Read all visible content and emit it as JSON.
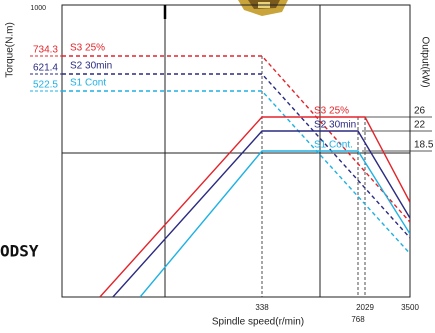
{
  "chart_data": {
    "type": "line",
    "x_label": "Spindle speed(r/min)",
    "y_label": "Torque(N.m)",
    "y2_label": "Output(kW)",
    "xlim": [
      0,
      3500
    ],
    "xticks": [
      338,
      768,
      2029,
      3500
    ],
    "ylim": [
      0,
      1000
    ],
    "yticks": [
      522.5,
      621.4,
      734.3,
      1000
    ],
    "y2lim": [
      0,
      58
    ],
    "y2ticks": [
      18.5,
      22,
      26
    ],
    "series": [
      {
        "name": "S3 25%",
        "color": "#e3242b",
        "linestyle": "dashed",
        "x": [
          0,
          338,
          3500
        ],
        "values": [
          734.3,
          734.3,
          190
        ]
      },
      {
        "name": "S2 30min",
        "color": "#2b2b82",
        "linestyle": "dashed",
        "x": [
          0,
          338,
          3500
        ],
        "values": [
          621.4,
          621.4,
          150
        ]
      },
      {
        "name": "S1 Cont",
        "color": "#1fb1e3",
        "linestyle": "dashed",
        "x": [
          0,
          338,
          3500
        ],
        "values": [
          522.5,
          522.5,
          110
        ]
      },
      {
        "name": "S3 25%",
        "color": "#e3242b",
        "linestyle": "solid",
        "axis": "y2",
        "x": [
          64,
          338,
          2029,
          3500
        ],
        "values": [
          0,
          26,
          26,
          12
        ]
      },
      {
        "name": "S2 30min",
        "color": "#2b2b82",
        "linestyle": "solid",
        "axis": "y2",
        "x": [
          86,
          338,
          768,
          3500
        ],
        "values": [
          0,
          22,
          22,
          10
        ]
      },
      {
        "name": "S1 Cont.",
        "color": "#1fb1e3",
        "linestyle": "solid",
        "axis": "y2",
        "x": [
          132,
          338,
          768,
          3500
        ],
        "values": [
          0,
          18.5,
          18.5,
          8
        ]
      }
    ],
    "watermark": "ODSY"
  }
}
